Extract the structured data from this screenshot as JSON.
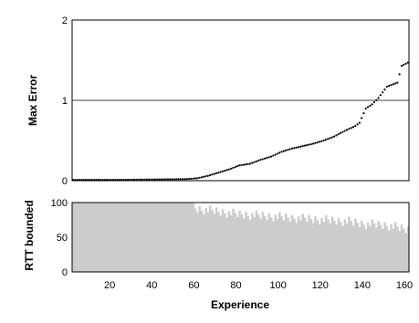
{
  "chart_data": [
    {
      "type": "scatter",
      "ylabel": "Max Error",
      "xlim": [
        0,
        160
      ],
      "ylim": [
        0,
        2
      ],
      "yticks": [
        "0",
        "1",
        "2"
      ],
      "reference_line_y": 1,
      "marker_color": "#000000",
      "series": [
        {
          "x_range": [
            1,
            160
          ],
          "y_anchors": [
            [
              1,
              0.01
            ],
            [
              20,
              0.01
            ],
            [
              40,
              0.015
            ],
            [
              55,
              0.02
            ],
            [
              60,
              0.03
            ],
            [
              65,
              0.06
            ],
            [
              70,
              0.1
            ],
            [
              75,
              0.14
            ],
            [
              80,
              0.19
            ],
            [
              85,
              0.21
            ],
            [
              90,
              0.26
            ],
            [
              95,
              0.3
            ],
            [
              100,
              0.36
            ],
            [
              105,
              0.4
            ],
            [
              110,
              0.43
            ],
            [
              115,
              0.46
            ],
            [
              120,
              0.5
            ],
            [
              125,
              0.55
            ],
            [
              130,
              0.62
            ],
            [
              135,
              0.68
            ],
            [
              137,
              0.72
            ],
            [
              140,
              0.9
            ],
            [
              143,
              0.95
            ],
            [
              146,
              1.03
            ],
            [
              148,
              1.1
            ],
            [
              150,
              1.17
            ],
            [
              153,
              1.2
            ],
            [
              155,
              1.22
            ],
            [
              157,
              1.43
            ],
            [
              160,
              1.47
            ]
          ]
        }
      ]
    },
    {
      "type": "bar",
      "ylabel": "RTT bounded",
      "xlabel": "Experience",
      "xlim": [
        0,
        160
      ],
      "ylim": [
        0,
        100
      ],
      "yticks": [
        "0",
        "50",
        "100"
      ],
      "xticks": [
        "20",
        "40",
        "60",
        "80",
        "100",
        "120",
        "140",
        "160"
      ],
      "bar_color": "#cccccc",
      "series": [
        {
          "x_range": [
            1,
            160
          ],
          "y_anchors": [
            [
              1,
              100
            ],
            [
              55,
              100
            ],
            [
              60,
              98
            ],
            [
              70,
              94
            ],
            [
              80,
              90
            ],
            [
              90,
              88
            ],
            [
              100,
              86
            ],
            [
              110,
              84
            ],
            [
              120,
              82
            ],
            [
              130,
              80
            ],
            [
              140,
              76
            ],
            [
              150,
              74
            ],
            [
              160,
              68
            ]
          ]
        }
      ]
    }
  ]
}
